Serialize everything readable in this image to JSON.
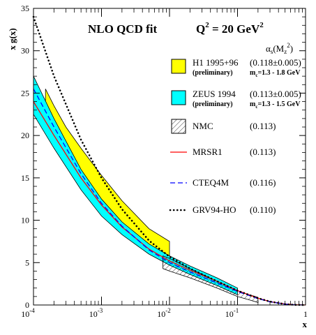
{
  "chart_data": {
    "type": "line",
    "title_left": "NLO QCD fit",
    "title_right_base": "Q",
    "title_right_sup": "2",
    "title_right_rest": " = 20 GeV",
    "title_right_sup2": "2",
    "xlabel": "x",
    "ylabel": "x g(x)",
    "xscale": "log",
    "xlim": [
      0.0001,
      1
    ],
    "ylim": [
      0,
      35
    ],
    "yticks": [
      "0",
      "5",
      "10",
      "15",
      "20",
      "25",
      "30",
      "35"
    ],
    "xticks": [
      {
        "base": "10",
        "exp": "-4"
      },
      {
        "base": "10",
        "exp": "-3"
      },
      {
        "base": "10",
        "exp": "-2"
      },
      {
        "base": "10",
        "exp": "-1"
      },
      {
        "base": "1",
        "exp": ""
      }
    ],
    "legend_header": "α_s(M_z^2)",
    "legend": [
      {
        "name": "H1 1995+96",
        "note": "(preliminary)",
        "value": "(0.118±0.005)",
        "mc": "m_c=1.3 - 1.8 GeV",
        "color": "#ffff00"
      },
      {
        "name": "ZEUS 1994",
        "note": "(preliminary)",
        "value": "(0.113±0.005)",
        "mc": "m_c=1.3 - 1.5 GeV",
        "color": "#00ffff"
      },
      {
        "name": "NMC",
        "value": "(0.113)"
      },
      {
        "name": "MRSR1",
        "value": "(0.113)",
        "color": "#ff0000"
      },
      {
        "name": "CTEQ4M",
        "value": "(0.116)",
        "color": "#0000ff"
      },
      {
        "name": "GRV94-HO",
        "value": "(0.110)",
        "color": "#000000"
      }
    ],
    "series": [
      {
        "name": "H1 1995+96",
        "kind": "band",
        "color": "#ffff00",
        "x": [
          0.00015,
          0.0002,
          0.0003,
          0.0005,
          0.001,
          0.002,
          0.005,
          0.01
        ],
        "low": [
          21.0,
          19.3,
          17.1,
          14.5,
          11.3,
          8.8,
          6.3,
          5.2
        ],
        "high": [
          25.5,
          23.5,
          21.0,
          18.5,
          15.3,
          12.3,
          9.0,
          7.5
        ]
      },
      {
        "name": "ZEUS 1994",
        "kind": "band",
        "color": "#00ffff",
        "x": [
          0.0001,
          0.0002,
          0.0005,
          0.001,
          0.002,
          0.005,
          0.01,
          0.02,
          0.05,
          0.1
        ],
        "low": [
          22.5,
          18.5,
          13.6,
          10.5,
          8.3,
          6.0,
          4.7,
          3.6,
          2.3,
          1.2
        ],
        "high": [
          27.0,
          22.0,
          16.0,
          12.5,
          9.8,
          7.2,
          5.8,
          4.6,
          3.2,
          2.0
        ]
      },
      {
        "name": "NMC",
        "kind": "band",
        "color": "#000000",
        "x": [
          0.008,
          0.01,
          0.02,
          0.05,
          0.1,
          0.15,
          0.2
        ],
        "low": [
          4.3,
          4.0,
          3.2,
          2.0,
          1.0,
          0.6,
          0.3
        ],
        "high": [
          5.8,
          5.5,
          4.3,
          2.8,
          1.7,
          1.2,
          0.9
        ]
      },
      {
        "name": "MRSR1",
        "kind": "line",
        "dash": "solid",
        "color": "#ff0000",
        "x": [
          0.0001,
          0.0002,
          0.0005,
          0.001,
          0.002,
          0.005,
          0.01,
          0.02,
          0.05,
          0.1,
          0.2,
          0.3,
          0.5,
          0.7,
          1.0
        ],
        "y": [
          24.0,
          20.0,
          15.0,
          11.8,
          9.2,
          6.6,
          5.2,
          4.1,
          2.8,
          1.7,
          0.8,
          0.4,
          0.12,
          0.03,
          0.0
        ]
      },
      {
        "name": "CTEQ4M",
        "kind": "line",
        "dash": "dash",
        "color": "#0000ff",
        "x": [
          0.0001,
          0.0002,
          0.0005,
          0.001,
          0.002,
          0.005,
          0.01,
          0.02,
          0.05,
          0.1,
          0.2,
          0.3,
          0.5,
          0.7,
          1.0
        ],
        "y": [
          25.5,
          21.0,
          15.5,
          12.0,
          9.3,
          6.5,
          5.0,
          3.9,
          2.6,
          1.6,
          0.75,
          0.38,
          0.1,
          0.02,
          0.0
        ]
      },
      {
        "name": "GRV94-HO",
        "kind": "line",
        "dash": "dot",
        "color": "#000000",
        "x": [
          0.0001,
          0.0002,
          0.0005,
          0.001,
          0.002,
          0.005,
          0.01,
          0.02,
          0.05,
          0.1,
          0.2,
          0.3,
          0.5,
          0.7,
          1.0
        ],
        "y": [
          34.0,
          27.0,
          19.5,
          15.0,
          11.3,
          7.6,
          5.7,
          4.3,
          2.8,
          1.7,
          0.8,
          0.4,
          0.1,
          0.02,
          0.0
        ]
      }
    ]
  }
}
